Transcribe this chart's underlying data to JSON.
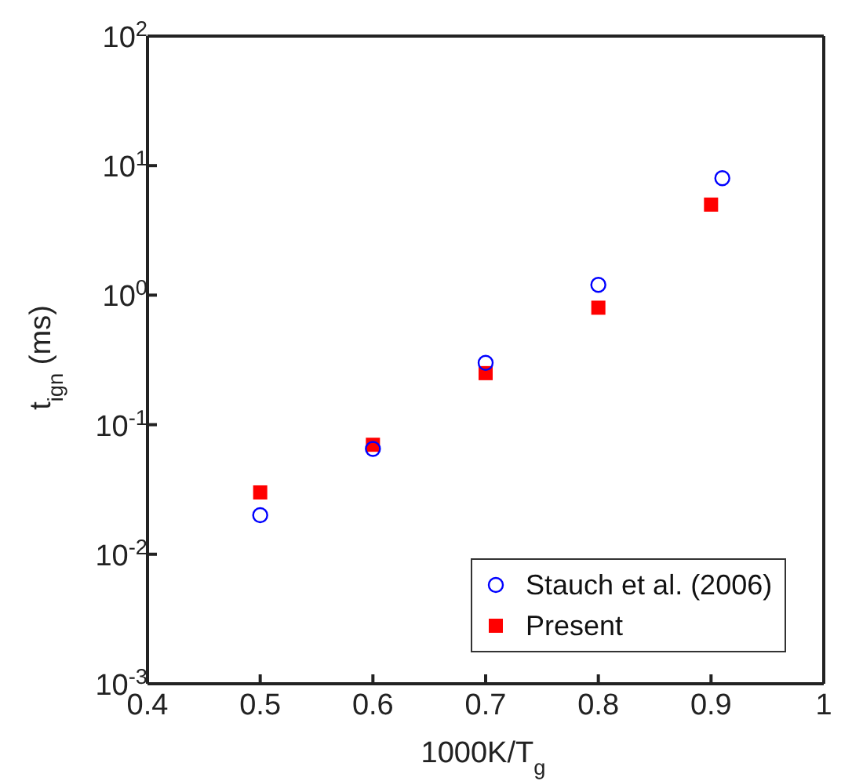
{
  "chart_data": {
    "type": "scatter",
    "xlabel": "1000K/T$_{g}$",
    "ylabel": "t$_{ign}$ (ms)",
    "log": "y",
    "xlim": [
      0.4,
      1.0
    ],
    "xticks": [
      0.4,
      0.5,
      0.6,
      0.7,
      0.8,
      0.9,
      1
    ],
    "ylim": [
      0.001,
      100
    ],
    "yticks": [
      {
        "value": 0.001,
        "label": "10$^{-3}$"
      },
      {
        "value": 0.01,
        "label": "10$^{-2}$"
      },
      {
        "value": 0.1,
        "label": "10$^{-1}$"
      },
      {
        "value": 1,
        "label": "10$^{0}$"
      },
      {
        "value": 10,
        "label": "10$^{1}$"
      },
      {
        "value": 100,
        "label": "10$^{2}$"
      }
    ],
    "grid": false,
    "legend": "bottom right",
    "series": [
      {
        "name": "Stauch et al. (2006)",
        "color": "#0000ff",
        "marker": "circle",
        "x": [
          0.5,
          0.6,
          0.7,
          0.8,
          0.91
        ],
        "values": [
          0.02,
          0.065,
          0.3,
          1.2,
          8
        ]
      },
      {
        "name": "Present",
        "color": "#ff0000",
        "marker": "square",
        "x": [
          0.5,
          0.6,
          0.7,
          0.8,
          0.9
        ],
        "values": [
          0.03,
          0.07,
          0.25,
          0.8,
          5
        ]
      }
    ]
  }
}
